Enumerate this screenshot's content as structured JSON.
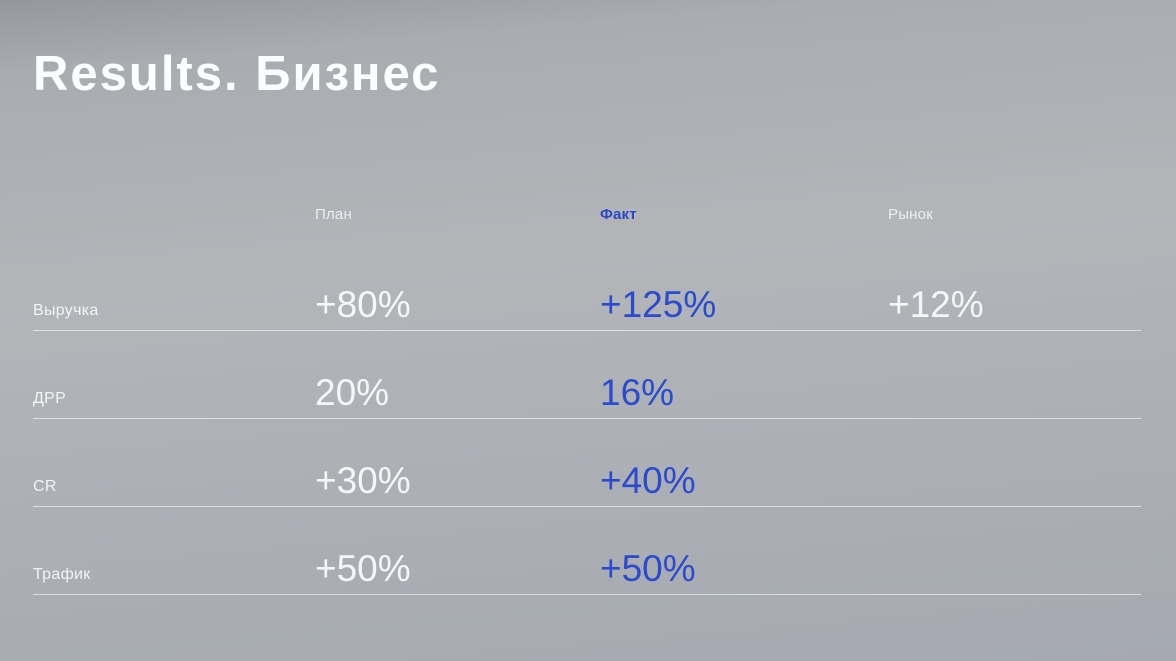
{
  "slide": {
    "title": "Results. Бизнес"
  },
  "colors": {
    "accent_blue": "#2a4bce",
    "background_gray": "#acafb5",
    "value_white": "#f5f6f8",
    "divider_white": "rgba(255,255,255,0.58)"
  },
  "table": {
    "columns": [
      "План",
      "Факт",
      "Рынок"
    ],
    "rows": [
      {
        "label": "Выручка",
        "plan": "+80%",
        "fact": "+125%",
        "market": "+12%"
      },
      {
        "label": "ДРР",
        "plan": "20%",
        "fact": "16%",
        "market": ""
      },
      {
        "label": "CR",
        "plan": "+30%",
        "fact": "+40%",
        "market": ""
      },
      {
        "label": "Трафик",
        "plan": "+50%",
        "fact": "+50%",
        "market": ""
      }
    ]
  }
}
